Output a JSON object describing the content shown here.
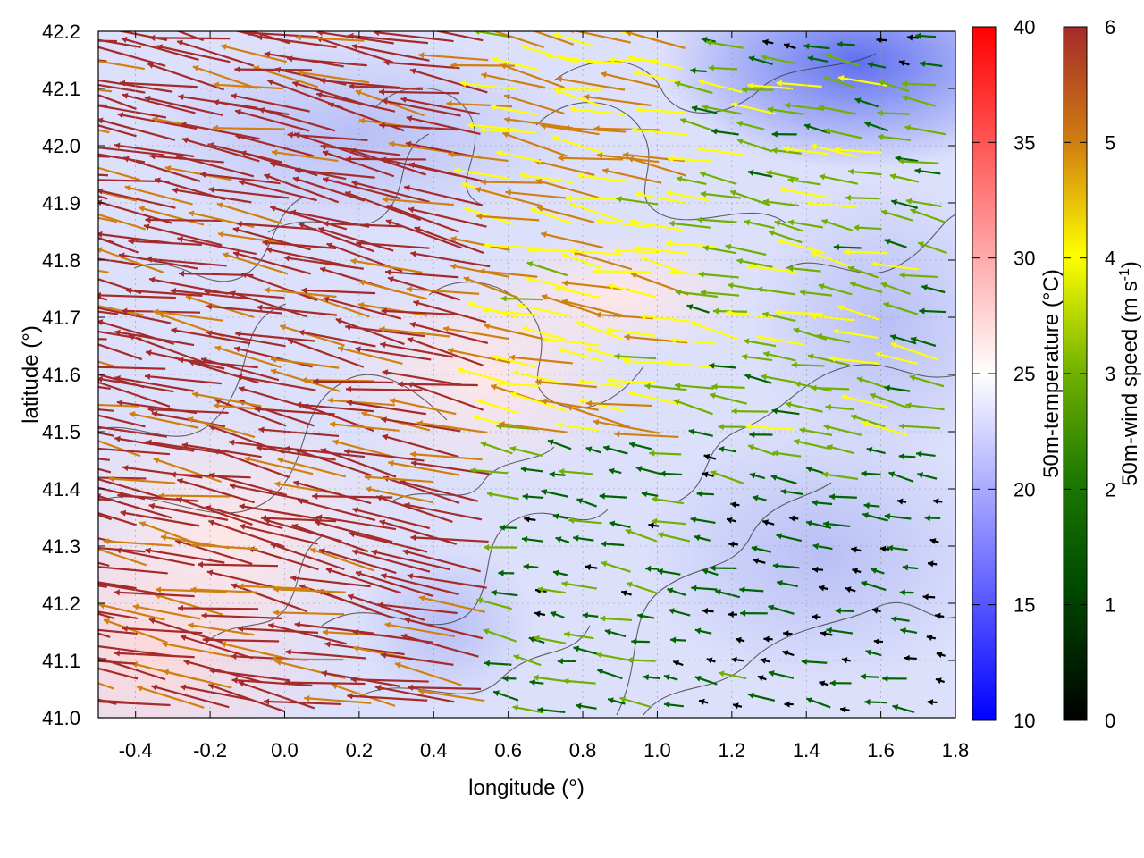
{
  "chart_data": {
    "type": "heatmap",
    "title": "",
    "xlabel": "longitude (°)",
    "ylabel": "latitude (°)",
    "xlim": [
      -0.5,
      1.8
    ],
    "ylim": [
      41.0,
      42.2
    ],
    "xticks": [
      -0.4,
      -0.2,
      0.0,
      0.2,
      0.4,
      0.6,
      0.8,
      1.0,
      1.2,
      1.4,
      1.6,
      1.8
    ],
    "xtick_labels": [
      "-0.4",
      "-0.2",
      "0.0",
      "0.2",
      "0.4",
      "0.6",
      "0.8",
      "1.0",
      "1.2",
      "1.4",
      "1.6",
      "1.8"
    ],
    "yticks": [
      41.0,
      41.1,
      41.2,
      41.3,
      41.4,
      41.5,
      41.6,
      41.7,
      41.8,
      41.9,
      42.0,
      42.1,
      42.2
    ],
    "ytick_labels": [
      "41.0",
      "41.1",
      "41.2",
      "41.3",
      "41.4",
      "41.5",
      "41.6",
      "41.7",
      "41.8",
      "41.9",
      "42.0",
      "42.1",
      "42.2"
    ],
    "grid": true,
    "heatmap_field": {
      "name": "50m-temperature",
      "colorbar_label": "50m-temperature (°C)",
      "range": [
        10,
        40
      ],
      "ticks": [
        10,
        15,
        20,
        25,
        30,
        35,
        40
      ],
      "tick_labels": [
        "10",
        "15",
        "20",
        "25",
        "30",
        "35",
        "40"
      ],
      "colormap": [
        "#0000ff",
        "#ffffff",
        "#ff0000"
      ],
      "approx_values": [
        {
          "lon": -0.4,
          "lat": 41.1,
          "value": 28
        },
        {
          "lon": 0.0,
          "lat": 41.3,
          "value": 25
        },
        {
          "lon": 0.5,
          "lat": 41.6,
          "value": 27
        },
        {
          "lon": 0.9,
          "lat": 41.0,
          "value": 21
        },
        {
          "lon": 1.5,
          "lat": 42.15,
          "value": 15
        },
        {
          "lon": 1.6,
          "lat": 41.4,
          "value": 20
        },
        {
          "lon": 0.3,
          "lat": 42.1,
          "value": 21
        }
      ]
    },
    "vector_field": {
      "name": "50m-wind",
      "colorbar_label": "50m-wind speed (m s-1)",
      "range": [
        0,
        6
      ],
      "ticks": [
        0,
        1,
        2,
        3,
        4,
        5,
        6
      ],
      "tick_labels": [
        "0",
        "1",
        "2",
        "3",
        "4",
        "5",
        "6"
      ],
      "colormap": [
        "#000000",
        "#006400",
        "#70b000",
        "#ffff00",
        "#d08010",
        "#a52a2a"
      ],
      "approx_regions": [
        {
          "lon_range": [
            -0.5,
            0.6
          ],
          "lat_range": [
            41.0,
            42.2
          ],
          "direction": "westward",
          "speed": 6
        },
        {
          "lon_range": [
            0.6,
            1.1
          ],
          "lat_range": [
            41.5,
            42.2
          ],
          "direction": "westward",
          "speed": 4
        },
        {
          "lon_range": [
            1.1,
            1.8
          ],
          "lat_range": [
            41.5,
            42.1
          ],
          "direction": "westward",
          "speed": 2.5
        },
        {
          "lon_range": [
            1.1,
            1.8
          ],
          "lat_range": [
            41.0,
            41.4
          ],
          "direction": "weak",
          "speed": 0.8
        }
      ]
    },
    "contours": "terrain elevation contours (dark gray lines)"
  }
}
